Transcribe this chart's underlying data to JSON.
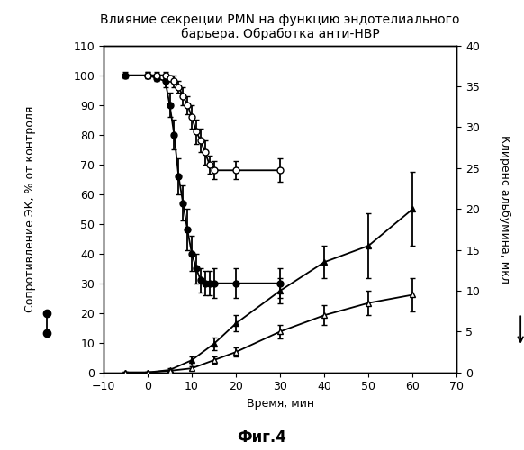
{
  "title": "Влияние секреции PMN на функцию эндотелиального\nбарьера. Обработка анти-НВР",
  "xlabel": "Время, мин",
  "ylabel_left": "Сопротивление ЭК, % от контроля",
  "ylabel_right": "Клиренс альбумина, мкл",
  "fig_label": "Фиг.4",
  "filled_circles_x": [
    -5,
    0,
    2,
    4,
    5,
    6,
    7,
    8,
    9,
    10,
    11,
    12,
    13,
    14,
    15,
    20,
    30
  ],
  "filled_circles_y": [
    100,
    100,
    99,
    98,
    90,
    80,
    66,
    57,
    48,
    40,
    35,
    31,
    30,
    30,
    30,
    30,
    30
  ],
  "filled_circles_err": [
    1,
    1,
    1,
    2,
    4,
    5,
    6,
    6,
    7,
    6,
    5,
    4,
    4,
    4,
    5,
    5,
    5
  ],
  "open_circles_x": [
    0,
    2,
    4,
    5,
    6,
    7,
    8,
    9,
    10,
    11,
    12,
    13,
    14,
    15,
    20,
    30
  ],
  "open_circles_y": [
    100,
    100,
    100,
    99,
    98,
    96,
    93,
    90,
    86,
    81,
    78,
    74,
    70,
    68,
    68,
    68
  ],
  "open_circles_err": [
    1,
    1,
    1,
    1,
    2,
    2,
    3,
    3,
    4,
    4,
    4,
    4,
    3,
    3,
    3,
    4
  ],
  "filled_triangles_x": [
    -5,
    0,
    5,
    10,
    15,
    20,
    30,
    40,
    50,
    60
  ],
  "filled_triangles_y": [
    0.0,
    0.0,
    0.3,
    1.5,
    3.5,
    6.0,
    10.0,
    13.5,
    15.5,
    20.0
  ],
  "filled_triangles_err": [
    0.1,
    0.1,
    0.2,
    0.5,
    0.8,
    1.0,
    1.5,
    2.0,
    4.0,
    4.5
  ],
  "open_triangles_x": [
    -5,
    0,
    5,
    10,
    15,
    20,
    30,
    40,
    50,
    60
  ],
  "open_triangles_y": [
    0.0,
    0.0,
    0.2,
    0.5,
    1.5,
    2.5,
    5.0,
    7.0,
    8.5,
    9.5
  ],
  "open_triangles_err": [
    0.1,
    0.1,
    0.1,
    0.2,
    0.4,
    0.6,
    0.8,
    1.2,
    1.5,
    2.0
  ],
  "left_ylim": [
    0,
    110
  ],
  "right_ylim": [
    0,
    40
  ],
  "xlim": [
    -10,
    70
  ],
  "left_yticks": [
    0,
    10,
    20,
    30,
    40,
    50,
    60,
    70,
    80,
    90,
    100,
    110
  ],
  "right_yticks": [
    0,
    5,
    10,
    15,
    20,
    25,
    30,
    35,
    40
  ],
  "xticks": [
    -10,
    0,
    10,
    20,
    30,
    40,
    50,
    60,
    70
  ],
  "background_color": "#ffffff",
  "font_size_title": 10,
  "font_size_label": 9,
  "font_size_tick": 9
}
